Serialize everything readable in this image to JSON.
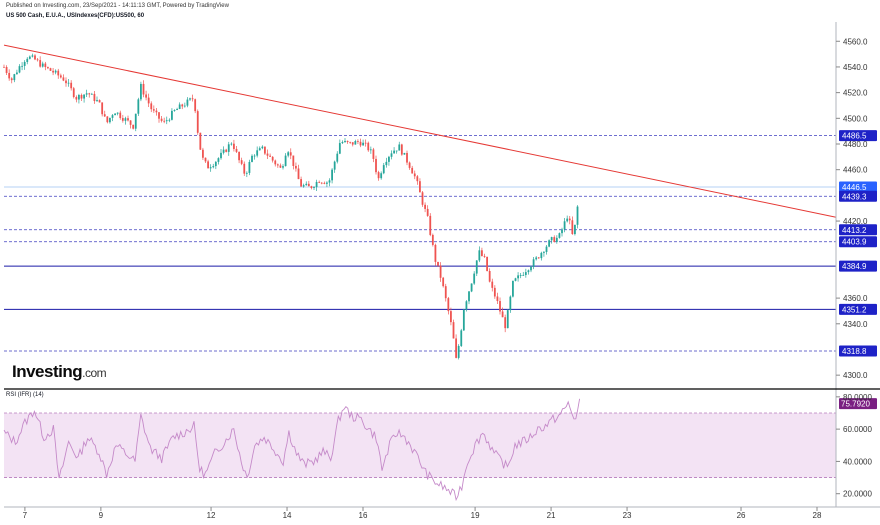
{
  "header": {
    "published": "Published on Investing.com, 23/Sep/2021 - 14:11:13 GMT, Powered by TradingView",
    "symbol": "US 500 Cash, E.U.A., USIndexes(CFD):US500, 60"
  },
  "brand": {
    "name": "Investing",
    "suffix": ".com"
  },
  "colors": {
    "up": "#26a69a",
    "down": "#ef5350",
    "trendline": "#e53935",
    "level_solid": "#1a1aa8",
    "level_dashed": "#3f3fbf",
    "label_bg": "#1e22c7",
    "rsi_line": "#c58ac9",
    "rsi_band": "#f3e3f4",
    "rsi_label_bg": "#7a1f82"
  },
  "chart_data": [
    {
      "type": "candlestick",
      "title": "US 500 Cash, E.U.A., USIndexes(CFD):US500, 60",
      "xlabel": "",
      "ylabel": "",
      "ylim": [
        4290,
        4575
      ],
      "yticks": [
        "4560.0",
        "4540.0",
        "4520.0",
        "4500.0",
        "4480.0",
        "4460.0",
        "4420.0",
        "4360.0",
        "4340.0",
        "4300.0"
      ],
      "xticks": [
        {
          "label": "7",
          "x": 6.95
        },
        {
          "label": "9",
          "x": 8.95
        },
        {
          "label": "12",
          "x": 11.85
        },
        {
          "label": "14",
          "x": 13.85
        },
        {
          "label": "16",
          "x": 15.85
        },
        {
          "label": "19",
          "x": 18.8
        },
        {
          "label": "21",
          "x": 20.8
        },
        {
          "label": "23",
          "x": 22.8
        },
        {
          "label": "26",
          "x": 25.8
        },
        {
          "label": "28",
          "x": 27.8
        }
      ],
      "xlim": [
        6.4,
        28.3
      ],
      "price_path": [
        [
          6.4,
          4540
        ],
        [
          6.6,
          4530
        ],
        [
          6.8,
          4540
        ],
        [
          7.0,
          4548
        ],
        [
          7.2,
          4546
        ],
        [
          7.45,
          4540
        ],
        [
          7.7,
          4536
        ],
        [
          8.0,
          4530
        ],
        [
          8.3,
          4516
        ],
        [
          8.6,
          4520
        ],
        [
          8.9,
          4512
        ],
        [
          9.1,
          4496
        ],
        [
          9.3,
          4506
        ],
        [
          9.55,
          4500
        ],
        [
          9.8,
          4494
        ],
        [
          10.0,
          4525
        ],
        [
          10.3,
          4506
        ],
        [
          10.6,
          4496
        ],
        [
          10.9,
          4506
        ],
        [
          11.2,
          4512
        ],
        [
          11.4,
          4516
        ],
        [
          11.5,
          4490
        ],
        [
          11.6,
          4470
        ],
        [
          11.75,
          4462
        ],
        [
          11.95,
          4466
        ],
        [
          12.2,
          4474
        ],
        [
          12.4,
          4482
        ],
        [
          12.6,
          4466
        ],
        [
          12.75,
          4456
        ],
        [
          12.95,
          4472
        ],
        [
          13.2,
          4476
        ],
        [
          13.45,
          4468
        ],
        [
          13.7,
          4460
        ],
        [
          13.85,
          4478
        ],
        [
          14.0,
          4466
        ],
        [
          14.2,
          4448
        ],
        [
          14.45,
          4446
        ],
        [
          14.7,
          4452
        ],
        [
          14.95,
          4450
        ],
        [
          15.1,
          4466
        ],
        [
          15.25,
          4482
        ],
        [
          15.5,
          4480
        ],
        [
          15.75,
          4482
        ],
        [
          15.95,
          4478
        ],
        [
          16.1,
          4472
        ],
        [
          16.25,
          4452
        ],
        [
          16.4,
          4466
        ],
        [
          16.6,
          4474
        ],
        [
          16.8,
          4478
        ],
        [
          16.95,
          4470
        ],
        [
          17.1,
          4462
        ],
        [
          17.25,
          4452
        ],
        [
          17.4,
          4436
        ],
        [
          17.55,
          4422
        ],
        [
          17.65,
          4406
        ],
        [
          17.75,
          4390
        ],
        [
          17.9,
          4376
        ],
        [
          18.05,
          4356
        ],
        [
          18.2,
          4335
        ],
        [
          18.3,
          4312
        ],
        [
          18.4,
          4328
        ],
        [
          18.5,
          4352
        ],
        [
          18.7,
          4372
        ],
        [
          18.9,
          4396
        ],
        [
          19.05,
          4390
        ],
        [
          19.2,
          4370
        ],
        [
          19.35,
          4360
        ],
        [
          19.5,
          4346
        ],
        [
          19.6,
          4338
        ],
        [
          19.8,
          4372
        ],
        [
          20.0,
          4378
        ],
        [
          20.2,
          4384
        ],
        [
          20.4,
          4390
        ],
        [
          20.6,
          4398
        ],
        [
          20.8,
          4405
        ],
        [
          21.0,
          4407
        ],
        [
          21.15,
          4418
        ],
        [
          21.25,
          4426
        ],
        [
          21.35,
          4408
        ],
        [
          21.45,
          4418
        ],
        [
          21.55,
          4446
        ]
      ],
      "series": [
        {
          "name": "4486.5",
          "value": 4486.5,
          "style": "dashed",
          "label": "4486.5"
        },
        {
          "name": "4446.5",
          "value": 4446.5,
          "style": "price",
          "label": "4446.5"
        },
        {
          "name": "4439.3",
          "value": 4439.3,
          "style": "dashed",
          "label": "4439.3"
        },
        {
          "name": "4413.2",
          "value": 4413.2,
          "style": "dashed",
          "label": "4413.2"
        },
        {
          "name": "4403.9",
          "value": 4403.9,
          "style": "dashed",
          "label": "4403.9"
        },
        {
          "name": "4384.9",
          "value": 4384.9,
          "style": "solid",
          "label": "4384.9"
        },
        {
          "name": "4351.2",
          "value": 4351.2,
          "style": "solid",
          "label": "4351.2"
        },
        {
          "name": "4318.8",
          "value": 4318.8,
          "style": "dashed",
          "label": "4318.8"
        }
      ],
      "trendline": {
        "x1": 6.4,
        "y1": 4557,
        "x2": 28.3,
        "y2": 4423
      }
    },
    {
      "type": "line",
      "title": "RSI (IFR) (14)",
      "ylim": [
        13,
        83
      ],
      "yticks": [
        "80.0000",
        "60.0000",
        "40.0000",
        "20.0000"
      ],
      "band": [
        30,
        70
      ],
      "last_value": "75.7920",
      "rsi_path": [
        [
          6.4,
          58
        ],
        [
          6.7,
          52
        ],
        [
          6.95,
          64
        ],
        [
          7.2,
          72
        ],
        [
          7.45,
          55
        ],
        [
          7.7,
          60
        ],
        [
          7.85,
          28
        ],
        [
          8.1,
          52
        ],
        [
          8.35,
          42
        ],
        [
          8.6,
          55
        ],
        [
          8.9,
          46
        ],
        [
          9.1,
          32
        ],
        [
          9.35,
          50
        ],
        [
          9.6,
          45
        ],
        [
          9.85,
          40
        ],
        [
          10.0,
          68
        ],
        [
          10.25,
          48
        ],
        [
          10.55,
          42
        ],
        [
          10.85,
          55
        ],
        [
          11.15,
          58
        ],
        [
          11.4,
          62
        ],
        [
          11.55,
          35
        ],
        [
          11.7,
          32
        ],
        [
          11.95,
          45
        ],
        [
          12.2,
          52
        ],
        [
          12.45,
          60
        ],
        [
          12.65,
          40
        ],
        [
          12.8,
          30
        ],
        [
          13.0,
          50
        ],
        [
          13.25,
          55
        ],
        [
          13.5,
          48
        ],
        [
          13.75,
          40
        ],
        [
          13.9,
          58
        ],
        [
          14.1,
          45
        ],
        [
          14.3,
          38
        ],
        [
          14.55,
          40
        ],
        [
          14.8,
          46
        ],
        [
          15.0,
          42
        ],
        [
          15.2,
          65
        ],
        [
          15.35,
          74
        ],
        [
          15.55,
          68
        ],
        [
          15.8,
          66
        ],
        [
          16.0,
          60
        ],
        [
          16.2,
          55
        ],
        [
          16.35,
          35
        ],
        [
          16.55,
          50
        ],
        [
          16.75,
          58
        ],
        [
          16.95,
          55
        ],
        [
          17.1,
          50
        ],
        [
          17.3,
          42
        ],
        [
          17.5,
          33
        ],
        [
          17.7,
          28
        ],
        [
          17.9,
          25
        ],
        [
          18.1,
          22
        ],
        [
          18.3,
          18
        ],
        [
          18.45,
          25
        ],
        [
          18.6,
          40
        ],
        [
          18.8,
          50
        ],
        [
          19.0,
          58
        ],
        [
          19.15,
          52
        ],
        [
          19.3,
          45
        ],
        [
          19.5,
          40
        ],
        [
          19.65,
          36
        ],
        [
          19.85,
          50
        ],
        [
          20.05,
          52
        ],
        [
          20.25,
          55
        ],
        [
          20.45,
          60
        ],
        [
          20.65,
          62
        ],
        [
          20.85,
          66
        ],
        [
          21.0,
          68
        ],
        [
          21.15,
          72
        ],
        [
          21.25,
          76
        ],
        [
          21.35,
          70
        ],
        [
          21.45,
          66
        ],
        [
          21.55,
          76
        ]
      ]
    }
  ]
}
